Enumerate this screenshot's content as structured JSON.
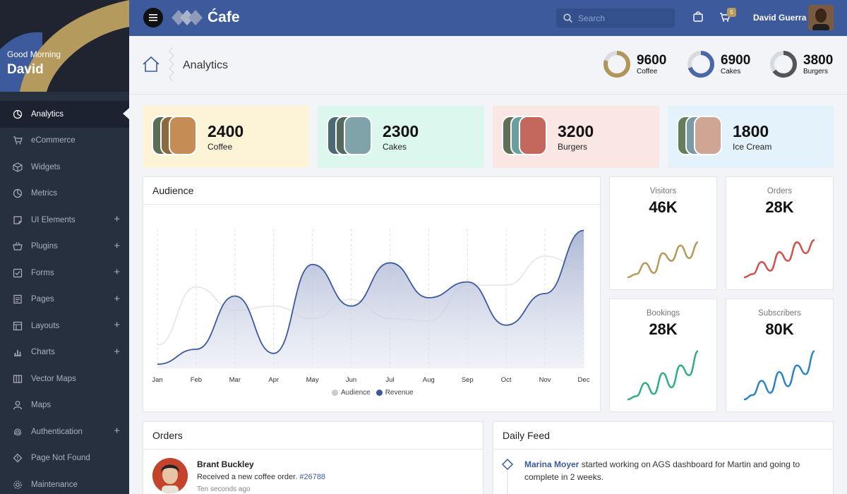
{
  "sidebar": {
    "greeting": "Good Morning",
    "user_first_name": "David",
    "items": [
      {
        "label": "Analytics",
        "icon": "pie-chart-icon",
        "active": true,
        "expandable": false
      },
      {
        "label": "eCommerce",
        "icon": "cart-icon",
        "active": false,
        "expandable": false
      },
      {
        "label": "Widgets",
        "icon": "box-icon",
        "active": false,
        "expandable": false
      },
      {
        "label": "Metrics",
        "icon": "pie-chart-icon",
        "active": false,
        "expandable": false
      },
      {
        "label": "UI Elements",
        "icon": "sticky-note-icon",
        "active": false,
        "expandable": true
      },
      {
        "label": "Plugins",
        "icon": "basket-icon",
        "active": false,
        "expandable": true
      },
      {
        "label": "Forms",
        "icon": "checkbox-icon",
        "active": false,
        "expandable": true
      },
      {
        "label": "Pages",
        "icon": "document-icon",
        "active": false,
        "expandable": true
      },
      {
        "label": "Layouts",
        "icon": "layout-icon",
        "active": false,
        "expandable": true
      },
      {
        "label": "Charts",
        "icon": "bar-chart-icon",
        "active": false,
        "expandable": true
      },
      {
        "label": "Vector Maps",
        "icon": "columns-icon",
        "active": false,
        "expandable": false
      },
      {
        "label": "Maps",
        "icon": "person-icon",
        "active": false,
        "expandable": false
      },
      {
        "label": "Authentication",
        "icon": "fingerprint-icon",
        "active": false,
        "expandable": true
      },
      {
        "label": "Page Not Found",
        "icon": "warning-icon",
        "active": false,
        "expandable": false
      },
      {
        "label": "Maintenance",
        "icon": "gear-icon",
        "active": false,
        "expandable": false
      }
    ]
  },
  "topbar": {
    "logo_text": "Ćafe",
    "search_placeholder": "Search",
    "cart_badge": "5",
    "user_name": "David Guerra"
  },
  "page": {
    "title": "Analytics",
    "donuts": [
      {
        "value": "9600",
        "label": "Coffee",
        "color": "#b0955c",
        "fraction": 0.8
      },
      {
        "value": "6900",
        "label": "Cakes",
        "color": "#4a68a8",
        "fraction": 0.7
      },
      {
        "value": "3800",
        "label": "Burgers",
        "color": "#555555",
        "fraction": 0.65
      }
    ]
  },
  "stat_cards": [
    {
      "value": "2400",
      "label": "Coffee",
      "bg": "#fdf4d8"
    },
    {
      "value": "2300",
      "label": "Cakes",
      "bg": "#dcf7ee"
    },
    {
      "value": "3200",
      "label": "Burgers",
      "bg": "#fae6e2"
    },
    {
      "value": "1800",
      "label": "Ice Cream",
      "bg": "#e3f2fb"
    }
  ],
  "audience_panel": {
    "title": "Audience"
  },
  "minis": [
    {
      "title": "Visitors",
      "value": "46K",
      "color": "#b59a5e"
    },
    {
      "title": "Orders",
      "value": "28K",
      "color": "#d0544c"
    },
    {
      "title": "Bookings",
      "value": "28K",
      "color": "#2fae84"
    },
    {
      "title": "Subscribers",
      "value": "80K",
      "color": "#2d86c4"
    }
  ],
  "chart_data": {
    "type": "area",
    "categories": [
      "Jan",
      "Feb",
      "Mar",
      "Apr",
      "May",
      "Jun",
      "Jul",
      "Aug",
      "Sep",
      "Oct",
      "Nov",
      "Dec"
    ],
    "series": [
      {
        "name": "Audience",
        "color": "#e6e8ec",
        "values": [
          28,
          98,
          70,
          75,
          60,
          83,
          60,
          57,
          100,
          100,
          135,
          120
        ]
      },
      {
        "name": "Revenue",
        "color": "#3c5a9c",
        "values": [
          5,
          23,
          87,
          18,
          125,
          75,
          127,
          85,
          104,
          52,
          90,
          166
        ]
      }
    ],
    "ylim": [
      0,
      180
    ]
  },
  "orders_panel": {
    "title": "Orders",
    "item": {
      "name": "Brant Buckley",
      "text": "Received a new coffee order.",
      "order_id": "#26788",
      "time": "Ten seconds ago"
    }
  },
  "feed_panel": {
    "title": "Daily Feed",
    "item": {
      "who": "Marina Moyer",
      "text": "started working on AGS dashboard for Martin and going to complete in 2 weeks."
    }
  }
}
